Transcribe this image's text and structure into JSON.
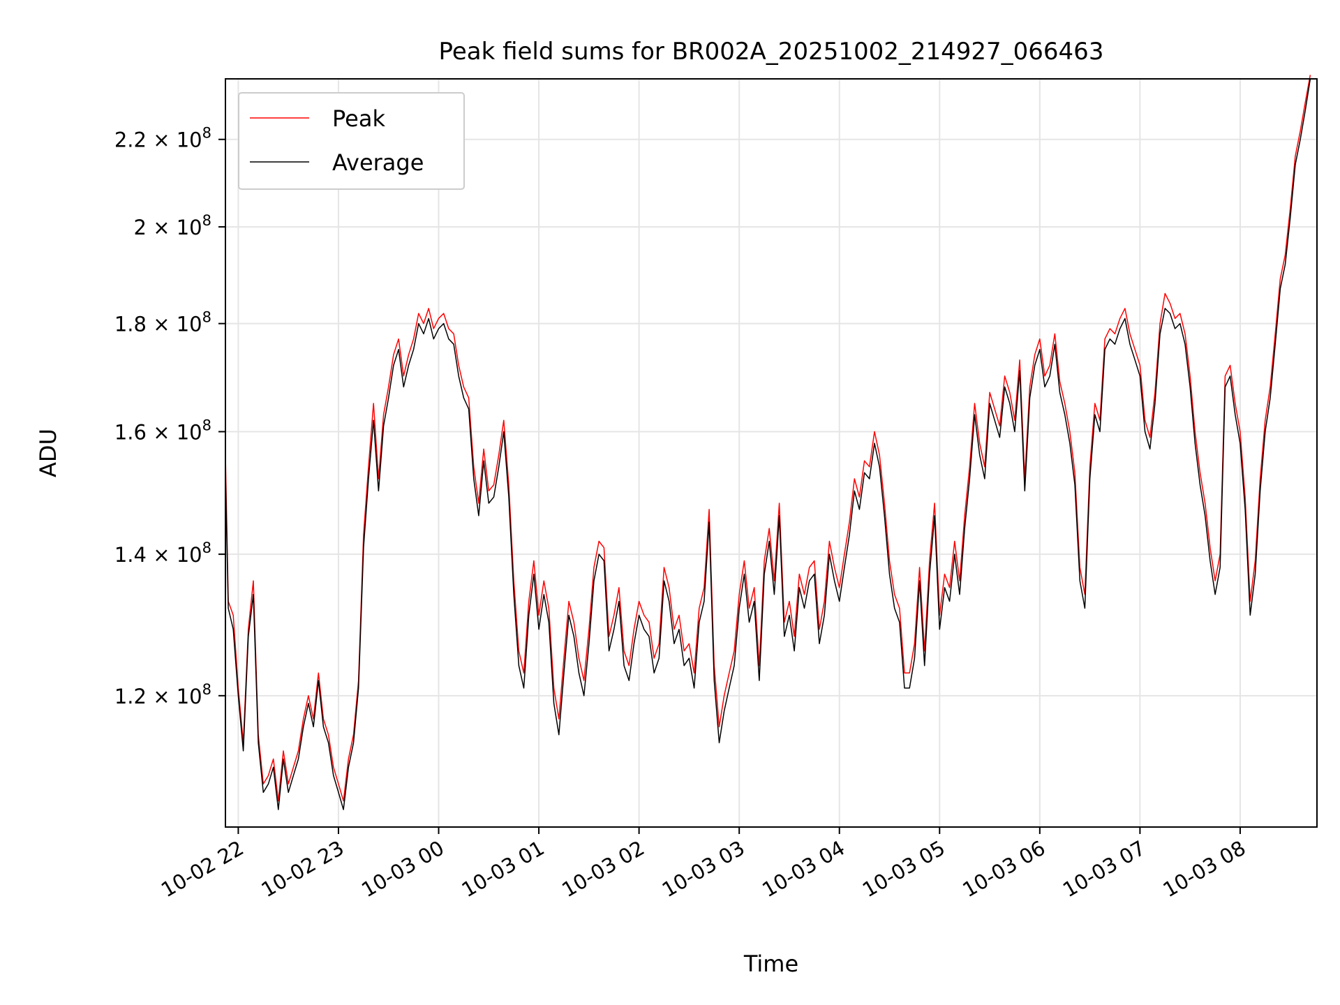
{
  "chart_data": {
    "type": "line",
    "title": "Peak field sums for BR002A_20251002_214927_066463",
    "xlabel": "Time",
    "ylabel": "ADU",
    "y_scale": "log",
    "ylim": [
      104000000,
      235000000
    ],
    "xlim_hours": [
      -0.1283,
      10.7667
    ],
    "grid": true,
    "legend_position": "upper-left",
    "x_tick_labels": [
      "10-02 22",
      "10-02 23",
      "10-03 00",
      "10-03 01",
      "10-03 02",
      "10-03 03",
      "10-03 04",
      "10-03 05",
      "10-03 06",
      "10-03 07",
      "10-03 08"
    ],
    "x_tick_hours": [
      0,
      1,
      2,
      3,
      4,
      5,
      6,
      7,
      8,
      9,
      10
    ],
    "y_ticks": [
      {
        "value": 120000000,
        "mantissa": "1.2",
        "exponent": "8"
      },
      {
        "value": 140000000,
        "mantissa": "1.4",
        "exponent": "8"
      },
      {
        "value": 160000000,
        "mantissa": "1.6",
        "exponent": "8"
      },
      {
        "value": 180000000,
        "mantissa": "1.8",
        "exponent": "8"
      },
      {
        "value": 200000000,
        "mantissa": "2",
        "exponent": "8"
      },
      {
        "value": 220000000,
        "mantissa": "2.2",
        "exponent": "8"
      }
    ],
    "x_hours": [
      -0.128,
      -0.1,
      -0.05,
      0,
      0.05,
      0.1,
      0.15,
      0.2,
      0.25,
      0.3,
      0.35,
      0.4,
      0.45,
      0.5,
      0.55,
      0.6,
      0.65,
      0.7,
      0.75,
      0.8,
      0.85,
      0.9,
      0.95,
      1,
      1.05,
      1.1,
      1.15,
      1.2,
      1.25,
      1.3,
      1.35,
      1.4,
      1.45,
      1.5,
      1.55,
      1.6,
      1.65,
      1.7,
      1.75,
      1.8,
      1.85,
      1.9,
      1.95,
      2,
      2.05,
      2.1,
      2.15,
      2.2,
      2.25,
      2.3,
      2.35,
      2.4,
      2.45,
      2.5,
      2.55,
      2.6,
      2.65,
      2.7,
      2.75,
      2.8,
      2.85,
      2.9,
      2.95,
      3,
      3.05,
      3.1,
      3.15,
      3.2,
      3.25,
      3.3,
      3.35,
      3.4,
      3.45,
      3.5,
      3.55,
      3.6,
      3.65,
      3.7,
      3.75,
      3.8,
      3.85,
      3.9,
      3.95,
      4,
      4.05,
      4.1,
      4.15,
      4.2,
      4.25,
      4.3,
      4.35,
      4.4,
      4.45,
      4.5,
      4.55,
      4.6,
      4.65,
      4.7,
      4.75,
      4.8,
      4.85,
      4.9,
      4.95,
      5,
      5.05,
      5.1,
      5.15,
      5.2,
      5.25,
      5.3,
      5.35,
      5.4,
      5.45,
      5.5,
      5.55,
      5.6,
      5.65,
      5.7,
      5.75,
      5.8,
      5.85,
      5.9,
      5.95,
      6,
      6.05,
      6.1,
      6.15,
      6.2,
      6.25,
      6.3,
      6.35,
      6.4,
      6.45,
      6.5,
      6.55,
      6.6,
      6.65,
      6.7,
      6.75,
      6.8,
      6.85,
      6.9,
      6.95,
      7,
      7.05,
      7.1,
      7.15,
      7.2,
      7.25,
      7.3,
      7.35,
      7.4,
      7.45,
      7.5,
      7.55,
      7.6,
      7.65,
      7.7,
      7.75,
      7.8,
      7.85,
      7.9,
      7.95,
      8,
      8.05,
      8.1,
      8.15,
      8.2,
      8.25,
      8.3,
      8.35,
      8.4,
      8.45,
      8.5,
      8.55,
      8.6,
      8.65,
      8.7,
      8.75,
      8.8,
      8.85,
      8.9,
      8.95,
      9,
      9.05,
      9.1,
      9.15,
      9.2,
      9.25,
      9.3,
      9.35,
      9.4,
      9.45,
      9.5,
      9.55,
      9.6,
      9.65,
      9.7,
      9.75,
      9.8,
      9.85,
      9.9,
      9.95,
      10,
      10.05,
      10.1,
      10.15,
      10.2,
      10.25,
      10.3,
      10.35,
      10.4,
      10.45,
      10.5,
      10.55,
      10.6,
      10.65,
      10.7,
      10.767
    ],
    "series": [
      {
        "name": "Average",
        "color": "#000000",
        "values_millions": [
          153,
          132,
          129,
          120,
          113,
          128,
          134,
          114,
          108,
          109,
          111,
          106,
          112,
          108,
          110,
          112,
          116,
          119,
          116,
          122,
          116,
          114,
          110,
          108,
          106,
          111,
          114,
          121,
          141,
          152,
          162,
          150,
          161,
          166,
          172,
          175,
          168,
          172,
          175,
          180,
          178,
          181,
          177,
          179,
          180,
          177,
          176,
          170,
          166,
          164,
          152,
          146,
          155,
          148,
          149,
          154,
          160,
          149,
          134,
          124,
          121,
          131,
          137,
          129,
          134,
          130,
          119,
          115,
          123,
          131,
          128,
          123,
          120,
          127,
          136,
          140,
          139,
          126,
          129,
          133,
          124,
          122,
          127,
          131,
          129,
          128,
          123,
          125,
          136,
          133,
          127,
          129,
          124,
          125,
          121,
          130,
          133,
          145,
          122,
          114,
          118,
          121,
          124,
          132,
          137,
          130,
          133,
          122,
          137,
          142,
          134,
          146,
          128,
          131,
          126,
          135,
          132,
          136,
          137,
          127,
          131,
          140,
          136,
          133,
          138,
          143,
          150,
          147,
          153,
          152,
          158,
          154,
          146,
          137,
          132,
          130,
          121,
          121,
          125,
          136,
          124,
          137,
          146,
          129,
          135,
          133,
          140,
          134,
          144,
          152,
          163,
          156,
          152,
          165,
          162,
          159,
          168,
          165,
          160,
          171,
          150,
          166,
          172,
          175,
          168,
          170,
          176,
          167,
          163,
          158,
          151,
          136,
          132,
          152,
          163,
          160,
          175,
          177,
          176,
          179,
          181,
          176,
          173,
          170,
          160,
          157,
          165,
          178,
          183,
          182,
          179,
          180,
          176,
          168,
          158,
          151,
          146,
          139,
          134,
          138,
          168,
          170,
          163,
          158,
          147,
          131,
          137,
          150,
          160,
          166,
          176,
          187,
          192,
          202,
          214,
          220,
          227,
          235
        ]
      },
      {
        "name": "Peak",
        "color": "#ff0000",
        "values_millions": [
          156,
          133,
          131,
          121,
          114,
          129,
          136,
          115,
          109,
          110,
          112,
          107,
          113,
          109,
          111,
          113,
          117,
          120,
          117,
          123,
          117,
          115,
          111,
          109,
          107,
          112,
          115,
          122,
          143,
          154,
          165,
          152,
          163,
          168,
          174,
          177,
          170,
          174,
          177,
          182,
          180,
          183,
          179,
          181,
          182,
          179,
          178,
          172,
          168,
          166,
          154,
          148,
          157,
          150,
          151,
          156,
          162,
          151,
          136,
          126,
          123,
          133,
          139,
          131,
          136,
          132,
          121,
          117,
          125,
          133,
          130,
          125,
          122,
          129,
          138,
          142,
          141,
          128,
          131,
          135,
          126,
          124,
          129,
          133,
          131,
          130,
          125,
          127,
          138,
          135,
          129,
          131,
          126,
          127,
          123,
          132,
          135,
          147,
          124,
          116,
          120,
          123,
          126,
          134,
          139,
          132,
          135,
          124,
          139,
          144,
          136,
          148,
          130,
          133,
          128,
          137,
          134,
          138,
          139,
          129,
          133,
          142,
          138,
          135,
          140,
          145,
          152,
          149,
          155,
          154,
          160,
          156,
          148,
          139,
          134,
          132,
          123,
          123,
          127,
          138,
          126,
          139,
          148,
          131,
          137,
          135,
          142,
          136,
          146,
          154,
          165,
          158,
          154,
          167,
          164,
          161,
          170,
          167,
          162,
          173,
          152,
          168,
          174,
          177,
          170,
          172,
          178,
          169,
          165,
          160,
          153,
          138,
          134,
          154,
          165,
          162,
          177,
          179,
          178,
          181,
          183,
          178,
          175,
          172,
          162,
          159,
          167,
          180,
          186,
          184,
          181,
          182,
          178,
          170,
          160,
          153,
          148,
          141,
          136,
          140,
          170,
          172,
          165,
          160,
          149,
          133,
          139,
          152,
          162,
          168,
          178,
          189,
          194,
          204,
          216,
          222,
          229,
          236
        ]
      }
    ]
  }
}
